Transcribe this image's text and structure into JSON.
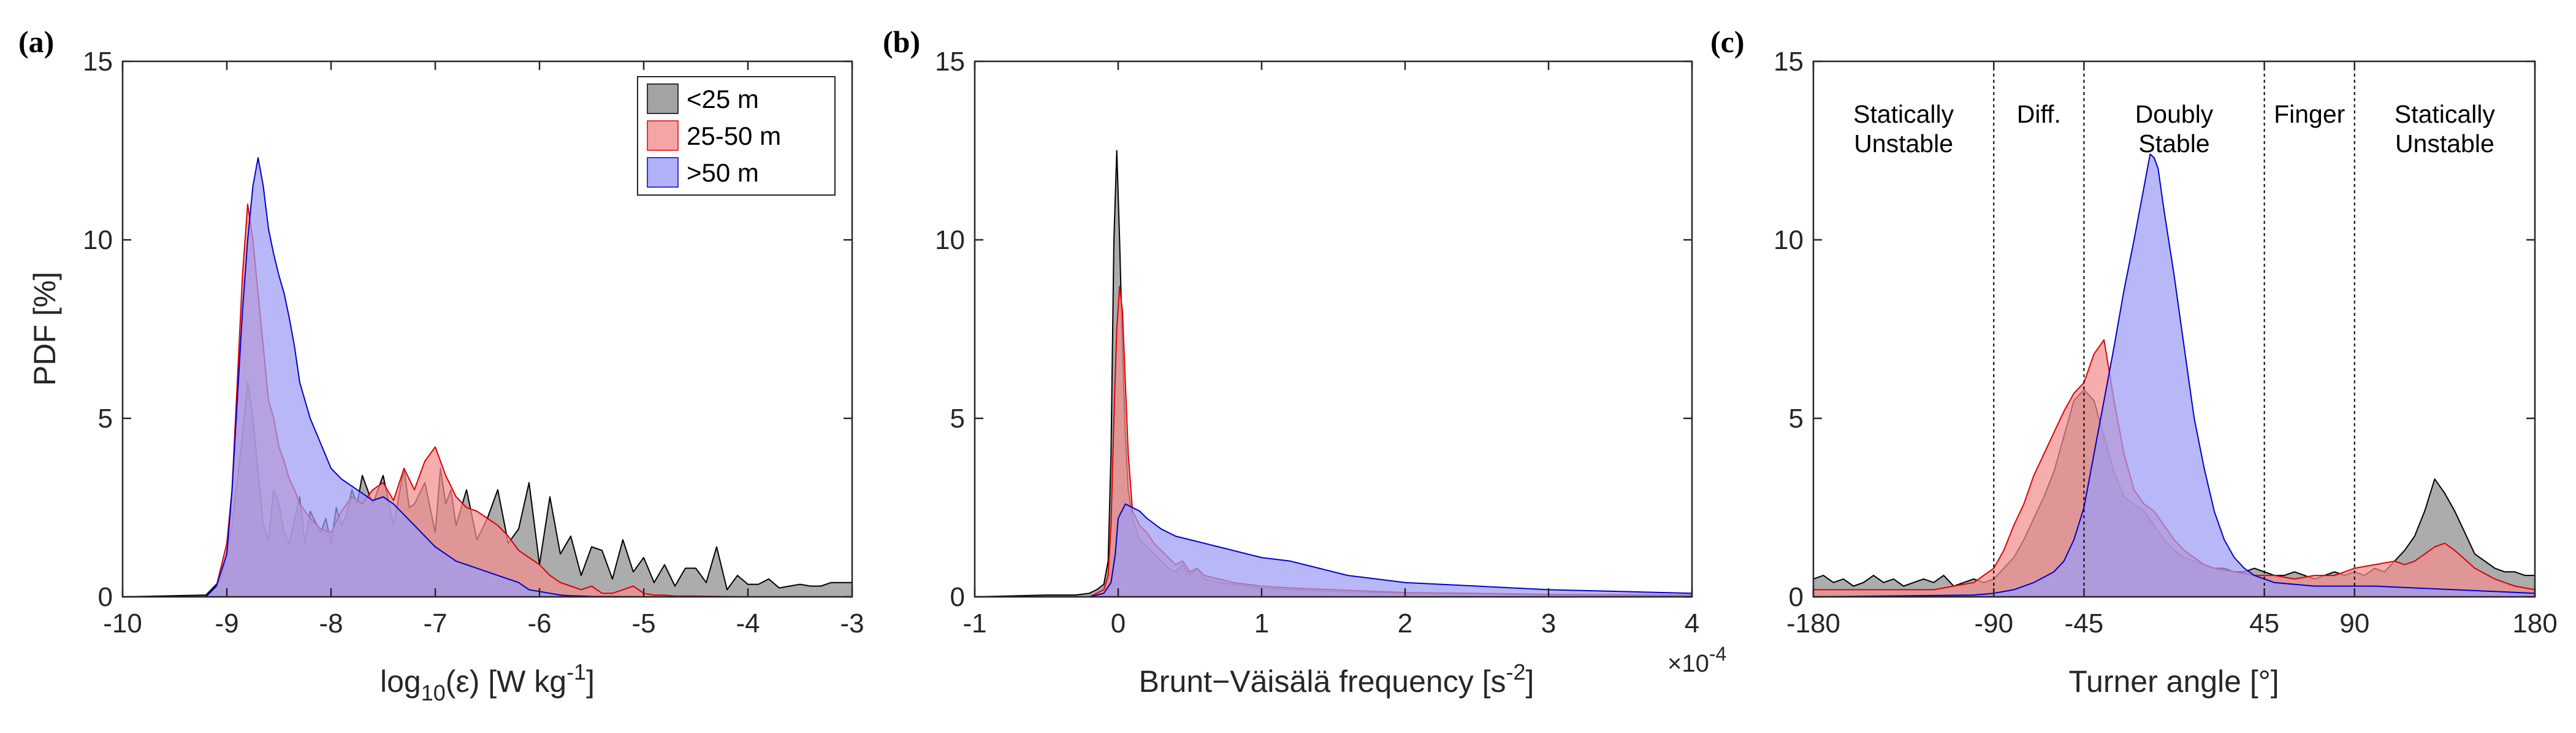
{
  "chart_data": [
    {
      "type": "area",
      "panel_label": "(a)",
      "xlabel": "",
      "ylabel": "PDF [%]",
      "xlim": [
        -10,
        -3
      ],
      "ylim": [
        0,
        15
      ],
      "xticks": [
        -10,
        -9,
        -8,
        -7,
        -6,
        -5,
        -4,
        -3
      ],
      "yticks": [
        0,
        5,
        10,
        15
      ],
      "legend": {
        "placement": "top-right",
        "entries": [
          "<25 m",
          "25-50 m",
          ">50 m"
        ]
      },
      "series": [
        {
          "name": "<25 m",
          "color": "#8c8c8c",
          "x": [
            -10,
            -9.2,
            -9.05,
            -8.95,
            -8.85,
            -8.8,
            -8.75,
            -8.7,
            -8.65,
            -8.6,
            -8.55,
            -8.5,
            -8.45,
            -8.4,
            -8.3,
            -8.25,
            -8.2,
            -8.1,
            -8.05,
            -8.0,
            -7.95,
            -7.9,
            -7.85,
            -7.8,
            -7.75,
            -7.7,
            -7.6,
            -7.5,
            -7.4,
            -7.3,
            -7.25,
            -7.2,
            -7.1,
            -7.0,
            -6.95,
            -6.9,
            -6.85,
            -6.8,
            -6.7,
            -6.6,
            -6.5,
            -6.4,
            -6.3,
            -6.2,
            -6.1,
            -6.0,
            -5.9,
            -5.8,
            -5.7,
            -5.6,
            -5.5,
            -5.4,
            -5.3,
            -5.2,
            -5.1,
            -5.0,
            -4.9,
            -4.8,
            -4.7,
            -4.6,
            -4.5,
            -4.4,
            -4.3,
            -4.2,
            -4.1,
            -4.0,
            -3.9,
            -3.8,
            -3.7,
            -3.6,
            -3.5,
            -3.4,
            -3.3,
            -3.2,
            -3.1,
            -3.0
          ],
          "y": [
            0,
            0.05,
            0.5,
            2.0,
            4.5,
            6.0,
            5.0,
            3.5,
            2.0,
            1.6,
            3.0,
            2.6,
            1.8,
            1.5,
            2.8,
            1.5,
            2.4,
            1.8,
            2.2,
            1.5,
            2.5,
            2.0,
            2.3,
            3.0,
            2.6,
            3.4,
            2.6,
            3.4,
            2.0,
            3.6,
            2.5,
            2.6,
            3.2,
            1.8,
            3.6,
            2.6,
            3.0,
            2.0,
            3.0,
            1.6,
            2.2,
            3.0,
            1.5,
            1.9,
            3.2,
            0.9,
            2.8,
            1.2,
            1.7,
            0.6,
            1.4,
            1.3,
            0.5,
            1.6,
            0.7,
            1.1,
            0.4,
            0.9,
            0.3,
            0.8,
            0.8,
            0.4,
            1.4,
            0.2,
            0.6,
            0.35,
            0.35,
            0.5,
            0.25,
            0.3,
            0.35,
            0.3,
            0.3,
            0.4,
            0.4,
            0.4
          ]
        },
        {
          "name": "25-50 m",
          "color": "#f28e8e",
          "x": [
            -10,
            -9.2,
            -9.1,
            -9.0,
            -8.95,
            -8.9,
            -8.85,
            -8.8,
            -8.75,
            -8.7,
            -8.65,
            -8.6,
            -8.55,
            -8.5,
            -8.45,
            -8.4,
            -8.35,
            -8.3,
            -8.2,
            -8.1,
            -8.0,
            -7.9,
            -7.8,
            -7.7,
            -7.6,
            -7.5,
            -7.4,
            -7.3,
            -7.2,
            -7.1,
            -7.0,
            -6.9,
            -6.8,
            -6.7,
            -6.6,
            -6.5,
            -6.4,
            -6.3,
            -6.2,
            -6.1,
            -6.0,
            -5.9,
            -5.8,
            -5.7,
            -5.6,
            -5.5,
            -5.4,
            -5.3,
            -5.2,
            -5.1,
            -5.0,
            -4.9,
            -4.8,
            -4.7,
            -4.6,
            -4.5,
            -4.0,
            -3.0
          ],
          "y": [
            0,
            0,
            0.3,
            1.5,
            3.0,
            6.0,
            9.0,
            11.0,
            10.0,
            8.5,
            7.0,
            5.5,
            5.0,
            4.2,
            3.8,
            3.3,
            3.0,
            2.6,
            2.2,
            1.9,
            1.8,
            2.4,
            2.8,
            2.6,
            3.0,
            3.2,
            2.7,
            3.6,
            3.0,
            3.8,
            4.2,
            3.4,
            2.8,
            2.5,
            2.4,
            2.2,
            2.0,
            1.7,
            1.3,
            1.1,
            0.9,
            0.6,
            0.4,
            0.3,
            0.2,
            0.3,
            0.1,
            0.1,
            0.2,
            0.3,
            0.1,
            0.05,
            0.05,
            0.02,
            0.02,
            0.02,
            0,
            0
          ]
        },
        {
          "name": ">50 m",
          "color": "#9d9df5",
          "x": [
            -10,
            -9.2,
            -9.1,
            -9.0,
            -8.95,
            -8.9,
            -8.85,
            -8.8,
            -8.75,
            -8.7,
            -8.65,
            -8.6,
            -8.55,
            -8.5,
            -8.45,
            -8.4,
            -8.35,
            -8.3,
            -8.2,
            -8.1,
            -8.0,
            -7.9,
            -7.8,
            -7.7,
            -7.6,
            -7.5,
            -7.4,
            -7.3,
            -7.2,
            -7.1,
            -7.0,
            -6.9,
            -6.8,
            -6.7,
            -6.6,
            -6.5,
            -6.4,
            -6.3,
            -6.2,
            -6.1,
            -6.0,
            -5.9,
            -5.8,
            -5.7,
            -5.6,
            -5.5,
            -5.0,
            -3.0
          ],
          "y": [
            0,
            0,
            0.3,
            1.2,
            3.0,
            5.5,
            8.0,
            10.0,
            11.5,
            12.3,
            11.5,
            10.3,
            9.6,
            9.0,
            8.5,
            7.8,
            7.0,
            6.0,
            5.0,
            4.3,
            3.6,
            3.3,
            3.1,
            2.9,
            2.7,
            2.8,
            2.6,
            2.3,
            2.0,
            1.7,
            1.4,
            1.2,
            1.0,
            0.9,
            0.8,
            0.7,
            0.6,
            0.5,
            0.4,
            0.2,
            0.15,
            0.1,
            0.05,
            0.03,
            0.02,
            0.01,
            0,
            0
          ]
        }
      ]
    },
    {
      "type": "area",
      "panel_label": "(b)",
      "xlabel": "",
      "ylabel": "",
      "x_exponent": "×10",
      "x_exponent_power": "-4",
      "xlim": [
        -1,
        4
      ],
      "ylim": [
        0,
        15
      ],
      "xticks": [
        -1,
        0,
        1,
        2,
        3,
        4
      ],
      "yticks": [
        0,
        5,
        10,
        15
      ],
      "series": [
        {
          "name": "<25 m",
          "color": "#8c8c8c",
          "x": [
            -1.0,
            -0.5,
            -0.3,
            -0.2,
            -0.15,
            -0.1,
            -0.07,
            -0.05,
            -0.03,
            -0.01,
            0.01,
            0.03,
            0.05,
            0.07,
            0.1,
            0.15,
            0.2,
            0.25,
            0.3,
            0.35,
            0.4,
            0.45,
            0.5,
            0.55,
            0.6,
            0.7,
            0.8,
            0.9,
            1.0,
            1.2,
            1.5,
            2.0,
            2.5,
            3.0,
            4.0
          ],
          "y": [
            0,
            0.05,
            0.05,
            0.1,
            0.2,
            0.35,
            1.0,
            4.0,
            10.0,
            12.5,
            10.0,
            7.0,
            4.5,
            3.0,
            2.2,
            1.6,
            1.4,
            1.2,
            1.0,
            0.8,
            0.7,
            0.9,
            0.6,
            0.8,
            0.5,
            0.4,
            0.35,
            0.3,
            0.25,
            0.2,
            0.15,
            0.1,
            0.08,
            0.06,
            0.03
          ]
        },
        {
          "name": "25-50 m",
          "color": "#f28e8e",
          "x": [
            -1.0,
            -0.2,
            -0.1,
            -0.07,
            -0.05,
            -0.03,
            -0.01,
            0.01,
            0.03,
            0.05,
            0.07,
            0.1,
            0.15,
            0.2,
            0.25,
            0.3,
            0.35,
            0.4,
            0.45,
            0.5,
            0.55,
            0.6,
            0.7,
            0.8,
            0.9,
            1.0,
            1.2,
            1.5,
            2.0,
            2.5,
            3.0,
            4.0
          ],
          "y": [
            0,
            0,
            0.2,
            0.6,
            2.0,
            5.0,
            7.5,
            8.7,
            8.0,
            6.0,
            4.0,
            2.4,
            2.0,
            1.8,
            1.5,
            1.3,
            1.1,
            0.9,
            1.0,
            0.7,
            0.8,
            0.6,
            0.5,
            0.4,
            0.35,
            0.3,
            0.25,
            0.2,
            0.12,
            0.1,
            0.07,
            0.05
          ]
        },
        {
          "name": ">50 m",
          "color": "#9d9df5",
          "x": [
            -1.0,
            -0.2,
            -0.1,
            -0.05,
            -0.02,
            0.0,
            0.05,
            0.1,
            0.15,
            0.2,
            0.3,
            0.4,
            0.5,
            0.6,
            0.7,
            0.8,
            0.9,
            1.0,
            1.2,
            1.4,
            1.6,
            1.8,
            2.0,
            2.5,
            3.0,
            3.5,
            4.0
          ],
          "y": [
            0,
            0,
            0.1,
            0.4,
            1.2,
            2.2,
            2.6,
            2.5,
            2.4,
            2.2,
            1.9,
            1.7,
            1.6,
            1.5,
            1.4,
            1.3,
            1.2,
            1.1,
            1.0,
            0.8,
            0.6,
            0.5,
            0.4,
            0.3,
            0.2,
            0.15,
            0.1
          ]
        }
      ]
    },
    {
      "type": "area",
      "panel_label": "(c)",
      "xlabel": "Turner angle [°]",
      "ylabel": "",
      "xlim": [
        -180,
        180
      ],
      "ylim": [
        0,
        15
      ],
      "xticks": [
        -180,
        -90,
        -45,
        45,
        90,
        180
      ],
      "yticks": [
        0,
        5,
        10,
        15
      ],
      "regions": [
        {
          "lines": [
            "Statically",
            "Unstable"
          ],
          "x": -135
        },
        {
          "lines": [
            "Diff."
          ],
          "x": -67.5
        },
        {
          "lines": [
            "Doubly",
            "Stable"
          ],
          "x": 0
        },
        {
          "lines": [
            "Finger"
          ],
          "x": 67.5
        },
        {
          "lines": [
            "Statically",
            "Unstable"
          ],
          "x": 135
        }
      ],
      "dividers": [
        -90,
        -45,
        45,
        90
      ],
      "series": [
        {
          "name": "<25 m",
          "color": "#8c8c8c",
          "x": [
            -180,
            -175,
            -170,
            -165,
            -160,
            -155,
            -150,
            -145,
            -140,
            -135,
            -130,
            -125,
            -120,
            -115,
            -110,
            -105,
            -100,
            -95,
            -90,
            -85,
            -80,
            -75,
            -70,
            -65,
            -60,
            -55,
            -50,
            -45,
            -40,
            -35,
            -30,
            -25,
            -20,
            -15,
            -10,
            -5,
            0,
            5,
            10,
            15,
            20,
            25,
            30,
            35,
            40,
            45,
            50,
            55,
            60,
            65,
            70,
            75,
            80,
            85,
            90,
            95,
            100,
            105,
            110,
            115,
            120,
            125,
            130,
            135,
            140,
            145,
            150,
            155,
            160,
            165,
            170,
            175,
            180
          ],
          "y": [
            0.5,
            0.6,
            0.4,
            0.5,
            0.3,
            0.4,
            0.6,
            0.4,
            0.5,
            0.3,
            0.4,
            0.5,
            0.4,
            0.6,
            0.3,
            0.4,
            0.5,
            0.4,
            0.5,
            0.8,
            1.1,
            1.6,
            2.2,
            2.8,
            3.5,
            4.5,
            5.5,
            5.8,
            5.5,
            4.5,
            3.5,
            2.8,
            2.6,
            2.4,
            2.0,
            1.6,
            1.3,
            1.1,
            1.0,
            0.9,
            0.8,
            0.8,
            0.7,
            0.7,
            0.8,
            0.7,
            0.6,
            0.6,
            0.7,
            0.6,
            0.5,
            0.6,
            0.7,
            0.6,
            0.7,
            0.6,
            0.8,
            0.7,
            1.0,
            1.3,
            1.7,
            2.4,
            3.3,
            2.9,
            2.4,
            1.8,
            1.2,
            1.0,
            0.8,
            0.7,
            0.7,
            0.6,
            0.6
          ]
        },
        {
          "name": "25-50 m",
          "color": "#f28e8e",
          "x": [
            -180,
            -150,
            -120,
            -110,
            -100,
            -95,
            -90,
            -85,
            -80,
            -75,
            -70,
            -65,
            -60,
            -55,
            -50,
            -45,
            -40,
            -35,
            -30,
            -25,
            -20,
            -15,
            -10,
            -5,
            0,
            5,
            10,
            15,
            20,
            30,
            40,
            50,
            60,
            70,
            80,
            90,
            100,
            110,
            115,
            120,
            125,
            130,
            135,
            140,
            150,
            160,
            170,
            180
          ],
          "y": [
            0.2,
            0.2,
            0.2,
            0.3,
            0.4,
            0.6,
            0.8,
            1.3,
            2.0,
            2.6,
            3.4,
            4.0,
            4.6,
            5.2,
            5.7,
            6.0,
            6.8,
            7.2,
            5.5,
            4.0,
            3.0,
            2.6,
            2.4,
            2.0,
            1.6,
            1.3,
            1.1,
            0.9,
            0.8,
            0.7,
            0.6,
            0.6,
            0.5,
            0.6,
            0.6,
            0.8,
            0.9,
            1.0,
            0.9,
            1.0,
            1.2,
            1.4,
            1.5,
            1.3,
            0.8,
            0.5,
            0.3,
            0.2
          ]
        },
        {
          "name": ">50 m",
          "color": "#9d9df5",
          "x": [
            -180,
            -100,
            -90,
            -80,
            -70,
            -60,
            -55,
            -50,
            -45,
            -40,
            -35,
            -30,
            -25,
            -20,
            -15,
            -12,
            -10,
            -8,
            -5,
            0,
            5,
            10,
            15,
            20,
            25,
            30,
            35,
            40,
            45,
            50,
            60,
            70,
            80,
            90,
            100,
            120,
            140,
            160,
            180
          ],
          "y": [
            0,
            0.05,
            0.1,
            0.2,
            0.4,
            0.7,
            1.0,
            1.6,
            2.5,
            4.0,
            5.5,
            7.0,
            8.6,
            10.0,
            11.5,
            12.4,
            12.3,
            12.0,
            10.8,
            9.0,
            7.0,
            5.0,
            3.6,
            2.4,
            1.6,
            1.1,
            0.8,
            0.6,
            0.5,
            0.4,
            0.35,
            0.3,
            0.3,
            0.3,
            0.3,
            0.25,
            0.2,
            0.15,
            0.1
          ]
        }
      ]
    }
  ],
  "panel_a": {
    "xlabel_main": "log",
    "xlabel_sub": "10",
    "xlabel_eps": "(ε) [W kg",
    "xlabel_pow": "-1",
    "xlabel_end": "]"
  },
  "panel_b": {
    "xlabel_main": "Brunt−Väisälä frequency [s",
    "xlabel_pow": "-2",
    "xlabel_end": "]"
  }
}
